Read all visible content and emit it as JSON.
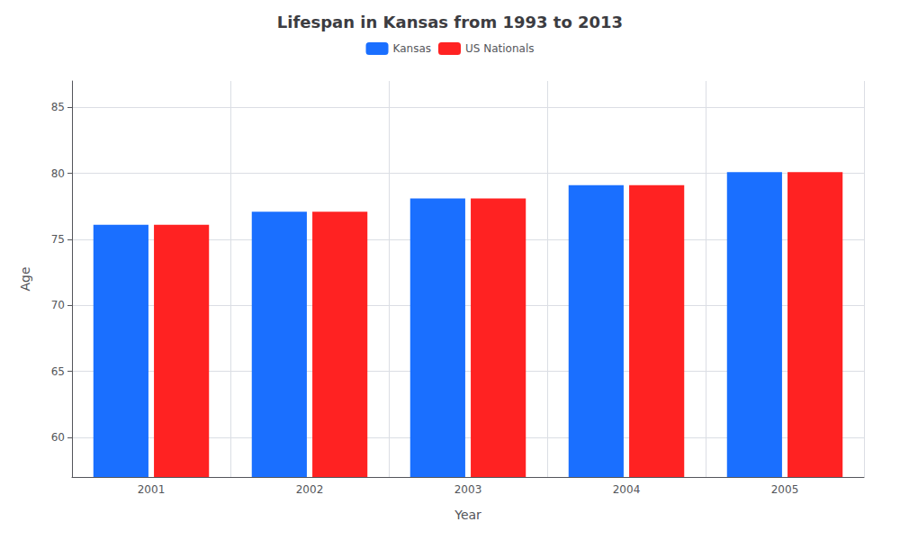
{
  "chart_data": {
    "type": "bar",
    "title": "Lifespan in Kansas from 1993 to 2013",
    "xlabel": "Year",
    "ylabel": "Age",
    "categories": [
      "2001",
      "2002",
      "2003",
      "2004",
      "2005"
    ],
    "series": [
      {
        "name": "Kansas",
        "color": "#1a6fff",
        "values": [
          76.1,
          77.1,
          78.1,
          79.1,
          80.1
        ]
      },
      {
        "name": "US Nationals",
        "color": "#ff2222",
        "values": [
          76.1,
          77.1,
          78.1,
          79.1,
          80.1
        ]
      }
    ],
    "ylim": [
      57,
      87
    ],
    "yticks": [
      60,
      65,
      70,
      75,
      80,
      85
    ],
    "grid": true,
    "legend": "top"
  }
}
